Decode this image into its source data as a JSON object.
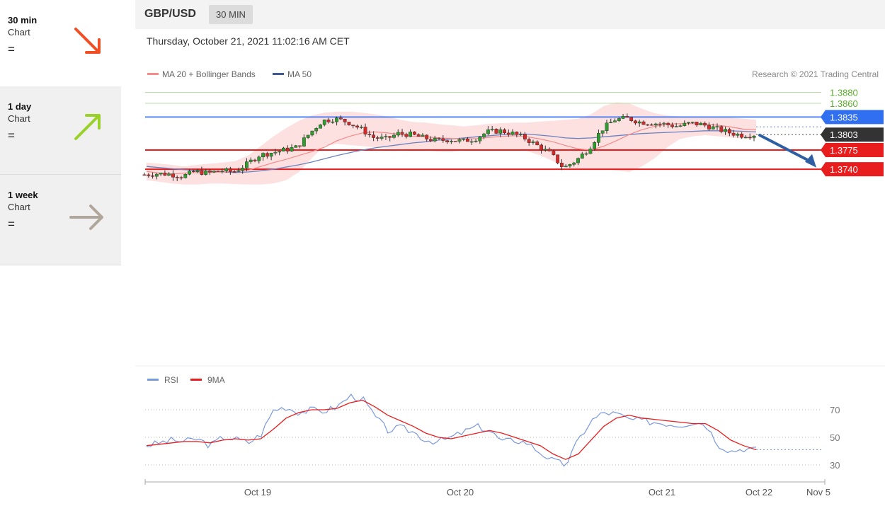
{
  "sidebar": [
    {
      "label": "30 min",
      "sub": "Chart",
      "trend": "=",
      "direction": "down",
      "color": "#f04e23",
      "icon": "arrow-down-right-icon"
    },
    {
      "label": "1 day",
      "sub": "Chart",
      "trend": "=",
      "direction": "up",
      "color": "#9ad129",
      "icon": "arrow-up-right-icon"
    },
    {
      "label": "1 week",
      "sub": "Chart",
      "trend": "=",
      "direction": "flat",
      "color": "#b0a69c",
      "icon": "arrow-right-icon"
    }
  ],
  "header": {
    "symbol": "GBP/USD",
    "timeframe": "30 MIN",
    "datetime": "Thursday, October 21, 2021 11:02:16 AM CET"
  },
  "chart_data": {
    "type": "candlestick",
    "legend": [
      {
        "name": "MA 20 + Bollinger Bands",
        "color": "#f58a8a"
      },
      {
        "name": "MA 50",
        "color": "#3c5a9a"
      }
    ],
    "copyright": "Research © 2021 Trading Central",
    "x_ticks": [
      "Oct 19",
      "Oct 20",
      "Oct 21",
      "Oct 22",
      "Nov 5"
    ],
    "levels": [
      {
        "value": 1.388,
        "label": "1.3880",
        "kind": "target",
        "color": "#5cae2e"
      },
      {
        "value": 1.386,
        "label": "1.3860",
        "kind": "target",
        "color": "#5cae2e"
      },
      {
        "value": 1.3835,
        "label": "1.3835",
        "kind": "resistance",
        "color": "#2f6ff0"
      },
      {
        "value": 1.3803,
        "label": "1.3803",
        "kind": "last-price",
        "color": "#333333"
      },
      {
        "value": 1.3775,
        "label": "1.3775",
        "kind": "support",
        "color": "#e81e1e"
      },
      {
        "value": 1.374,
        "label": "1.3740",
        "kind": "support",
        "color": "#e81e1e"
      }
    ],
    "forecast": {
      "from": 1.3802,
      "to": 1.3743,
      "direction": "down",
      "color": "#2f5fa3"
    },
    "price_path": [
      1.373,
      1.3732,
      1.3731,
      1.3727,
      1.3736,
      1.3733,
      1.3738,
      1.3735,
      1.3748,
      1.3765,
      1.377,
      1.3775,
      1.378,
      1.3805,
      1.3828,
      1.3832,
      1.3826,
      1.3814,
      1.3798,
      1.3795,
      1.3805,
      1.3803,
      1.3797,
      1.3792,
      1.3794,
      1.3791,
      1.3795,
      1.3808,
      1.381,
      1.3805,
      1.3796,
      1.3782,
      1.3768,
      1.3742,
      1.3756,
      1.3778,
      1.3812,
      1.383,
      1.3833,
      1.3826,
      1.3824,
      1.3822,
      1.3818,
      1.3824,
      1.3821,
      1.3814,
      1.3807,
      1.3802,
      1.3803
    ],
    "ma20": [
      1.3736,
      1.3733,
      1.3731,
      1.3733,
      1.3734,
      1.3734,
      1.3735,
      1.3736,
      1.3738,
      1.3745,
      1.3752,
      1.3758,
      1.3765,
      1.3772,
      1.378,
      1.3792,
      1.38,
      1.3806,
      1.3808,
      1.3806,
      1.3803,
      1.38,
      1.3799,
      1.3797,
      1.3796,
      1.3795,
      1.3796,
      1.3798,
      1.38,
      1.3801,
      1.3799,
      1.3795,
      1.379,
      1.3783,
      1.3777,
      1.3775,
      1.3782,
      1.3792,
      1.3803,
      1.3812,
      1.3818,
      1.3822,
      1.3823,
      1.3823,
      1.3822,
      1.382,
      1.3817,
      1.3813,
      1.3812
    ],
    "ma50": [
      1.3745,
      1.3743,
      1.3741,
      1.3739,
      1.3738,
      1.3736,
      1.3735,
      1.3734,
      1.3735,
      1.3737,
      1.374,
      1.3744,
      1.3748,
      1.3753,
      1.3759,
      1.3765,
      1.377,
      1.3775,
      1.3779,
      1.3782,
      1.3785,
      1.3788,
      1.379,
      1.3793,
      1.3795,
      1.3797,
      1.3799,
      1.3801,
      1.3803,
      1.3804,
      1.3804,
      1.3802,
      1.38,
      1.3797,
      1.3796,
      1.3797,
      1.3799,
      1.3801,
      1.3803,
      1.3805,
      1.3806,
      1.3807,
      1.3808,
      1.3809,
      1.381,
      1.381,
      1.381,
      1.3809,
      1.3808
    ],
    "bb_upper": [
      1.3752,
      1.375,
      1.3748,
      1.3745,
      1.3748,
      1.375,
      1.3752,
      1.3755,
      1.3765,
      1.3782,
      1.38,
      1.3815,
      1.3828,
      1.3838,
      1.3843,
      1.3845,
      1.3845,
      1.3843,
      1.384,
      1.3836,
      1.383,
      1.3826,
      1.3825,
      1.3822,
      1.382,
      1.3818,
      1.382,
      1.3823,
      1.3824,
      1.3825,
      1.3825,
      1.3827,
      1.3828,
      1.383,
      1.3832,
      1.384,
      1.3855,
      1.3862,
      1.386,
      1.385,
      1.3842,
      1.3838,
      1.3836,
      1.3835,
      1.3835,
      1.3835,
      1.3834,
      1.3832,
      1.383
    ],
    "bb_lower": [
      1.372,
      1.3717,
      1.3714,
      1.3712,
      1.3712,
      1.3714,
      1.3714,
      1.3713,
      1.3712,
      1.3712,
      1.3714,
      1.372,
      1.3735,
      1.376,
      1.3782,
      1.3786,
      1.3784,
      1.3782,
      1.378,
      1.3778,
      1.3777,
      1.3776,
      1.3774,
      1.3772,
      1.3772,
      1.3774,
      1.3775,
      1.3776,
      1.3776,
      1.3776,
      1.3773,
      1.3765,
      1.3755,
      1.3743,
      1.374,
      1.374,
      1.374,
      1.3738,
      1.3735,
      1.3745,
      1.376,
      1.378,
      1.3795,
      1.38,
      1.3802,
      1.38,
      1.3798,
      1.3795,
      1.3795
    ]
  },
  "rsi_data": {
    "legend": [
      {
        "name": "RSI",
        "color": "#7a98dc"
      },
      {
        "name": "9MA",
        "color": "#e81e1e"
      }
    ],
    "y_ticks": [
      70,
      50,
      30
    ],
    "ylim": [
      22,
      80
    ],
    "rsi": [
      44,
      46,
      48,
      47,
      49,
      44,
      50,
      49,
      46,
      52,
      70,
      72,
      68,
      70,
      69,
      72,
      80,
      78,
      65,
      55,
      57,
      54,
      48,
      47,
      50,
      54,
      58,
      55,
      47,
      48,
      46,
      39,
      33,
      30,
      48,
      62,
      68,
      67,
      63,
      62,
      61,
      60,
      59,
      61,
      60,
      45,
      40,
      42,
      41
    ],
    "ma9": [
      44,
      45,
      46,
      47,
      47,
      46,
      48,
      49,
      48,
      49,
      56,
      64,
      68,
      70,
      70,
      71,
      75,
      77,
      72,
      66,
      62,
      58,
      53,
      50,
      49,
      51,
      53,
      55,
      53,
      50,
      47,
      44,
      38,
      34,
      38,
      48,
      58,
      64,
      66,
      64,
      63,
      62,
      61,
      60,
      60,
      55,
      48,
      44,
      41
    ]
  }
}
